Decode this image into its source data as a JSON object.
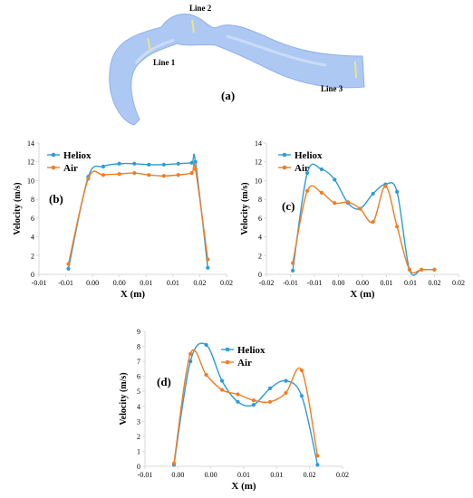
{
  "panel_a": {
    "label": "(a)",
    "line_labels": [
      "Line 1",
      "Line 2",
      "Line 3"
    ],
    "colors": {
      "airway_fill": "#a9c4f2",
      "airway_edge": "#8fb0ea",
      "line_marker": "#e3e78a"
    }
  },
  "colors": {
    "heliox": "#2e9bd6",
    "air": "#f07d23",
    "axis": "#d9d9d9"
  },
  "chart_data": [
    {
      "id": "b",
      "panel_label": "(b)",
      "type": "line",
      "title": "",
      "xlabel": "X (m)",
      "ylabel": "Velocity (m/s)",
      "xlim": [
        -0.015,
        0.02
      ],
      "ylim": [
        0,
        14
      ],
      "x_ticks": [
        {
          "v": -0.015,
          "label": "-0.01"
        },
        {
          "v": -0.01,
          "label": "-0.01"
        },
        {
          "v": -0.005,
          "label": "0.00"
        },
        {
          "v": 0.0,
          "label": "0.00"
        },
        {
          "v": 0.005,
          "label": "0.01"
        },
        {
          "v": 0.01,
          "label": "0.01"
        },
        {
          "v": 0.015,
          "label": "0.02"
        },
        {
          "v": 0.02,
          "label": "0.02"
        }
      ],
      "y_ticks": [
        0,
        2,
        4,
        6,
        8,
        10,
        12,
        14
      ],
      "legend": {
        "position": "top-left"
      },
      "series": [
        {
          "name": "Heliox",
          "color_key": "heliox",
          "x": [
            -0.0095,
            -0.0058,
            -0.003,
            0.0,
            0.0028,
            0.0055,
            0.0083,
            0.011,
            0.0135,
            0.0142,
            0.0165
          ],
          "y": [
            0.6,
            10.4,
            11.5,
            11.8,
            11.8,
            11.7,
            11.7,
            11.8,
            11.9,
            12.0,
            0.7
          ]
        },
        {
          "name": "Air",
          "color_key": "air",
          "x": [
            -0.0095,
            -0.0058,
            -0.003,
            0.0,
            0.0028,
            0.0055,
            0.0083,
            0.011,
            0.0135,
            0.0142,
            0.0165
          ],
          "y": [
            1.1,
            10.2,
            10.6,
            10.7,
            10.8,
            10.6,
            10.5,
            10.6,
            10.8,
            11.2,
            1.6
          ]
        }
      ]
    },
    {
      "id": "c",
      "panel_label": "(c)",
      "type": "line",
      "title": "",
      "xlabel": "X (m)",
      "ylabel": "Velocity (m/s)",
      "xlim": [
        -0.02,
        0.02
      ],
      "ylim": [
        0,
        14
      ],
      "x_ticks": [
        {
          "v": -0.02,
          "label": "-0.02"
        },
        {
          "v": -0.015,
          "label": "-0.01"
        },
        {
          "v": -0.01,
          "label": "-0.01"
        },
        {
          "v": -0.005,
          "label": "0.00"
        },
        {
          "v": 0.0,
          "label": "0.00"
        },
        {
          "v": 0.005,
          "label": "0.01"
        },
        {
          "v": 0.01,
          "label": "0.01"
        },
        {
          "v": 0.015,
          "label": "0.02"
        },
        {
          "v": 0.02,
          "label": "0.02"
        }
      ],
      "y_ticks": [
        0,
        2,
        4,
        6,
        8,
        10,
        12,
        14
      ],
      "legend": {
        "position": "top-left"
      },
      "series": [
        {
          "name": "Heliox",
          "color_key": "heliox",
          "x": [
            -0.0145,
            -0.0115,
            -0.0085,
            -0.0058,
            -0.003,
            -0.0005,
            0.0022,
            0.0048,
            0.0072,
            0.0098,
            0.0123,
            0.015
          ],
          "y": [
            0.4,
            10.8,
            11.2,
            10.1,
            7.6,
            7.0,
            8.6,
            9.6,
            8.8,
            0.5,
            0.5,
            0.5
          ]
        },
        {
          "name": "Air",
          "color_key": "air",
          "x": [
            -0.0145,
            -0.0115,
            -0.0085,
            -0.0058,
            -0.003,
            -0.0005,
            0.0022,
            0.0048,
            0.0072,
            0.0098,
            0.0123,
            0.015
          ],
          "y": [
            1.2,
            8.9,
            8.7,
            7.6,
            7.7,
            7.0,
            5.6,
            9.4,
            5.1,
            0.5,
            0.5,
            0.5
          ]
        }
      ]
    },
    {
      "id": "d",
      "panel_label": "(d)",
      "type": "line",
      "title": "",
      "xlabel": "X (m)",
      "ylabel": "Velocity (m/s)",
      "xlim": [
        -0.01,
        0.02
      ],
      "ylim": [
        0,
        9
      ],
      "x_ticks": [
        {
          "v": -0.01,
          "label": "-0.01"
        },
        {
          "v": -0.005,
          "label": "0.00"
        },
        {
          "v": 0.0,
          "label": "0.00"
        },
        {
          "v": 0.005,
          "label": "0.01"
        },
        {
          "v": 0.01,
          "label": "0.01"
        },
        {
          "v": 0.015,
          "label": "0.02"
        },
        {
          "v": 0.02,
          "label": "0.02"
        }
      ],
      "y_ticks": [
        0,
        1,
        2,
        3,
        4,
        5,
        6,
        7,
        8,
        9
      ],
      "legend": {
        "position": "top-center"
      },
      "series": [
        {
          "name": "Heliox",
          "color_key": "heliox",
          "x": [
            -0.0056,
            -0.0031,
            -0.0007,
            0.0017,
            0.0041,
            0.0065,
            0.009,
            0.0114,
            0.0138,
            0.0162
          ],
          "y": [
            0.1,
            7.0,
            8.1,
            5.7,
            4.3,
            4.1,
            5.2,
            5.7,
            4.7,
            0.1
          ]
        },
        {
          "name": "Air",
          "color_key": "air",
          "x": [
            -0.0056,
            -0.0031,
            -0.0007,
            0.0017,
            0.0041,
            0.0065,
            0.009,
            0.0114,
            0.0138,
            0.0162
          ],
          "y": [
            0.2,
            7.5,
            6.1,
            5.1,
            4.8,
            4.4,
            4.3,
            4.9,
            6.4,
            0.7
          ]
        }
      ]
    }
  ]
}
